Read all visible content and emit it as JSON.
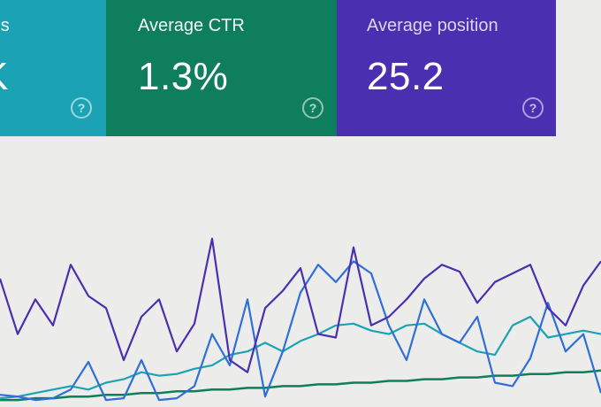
{
  "cards": {
    "impressions": {
      "title": "sions",
      "value": "K",
      "color": "#1ba3b5",
      "help_icon": "help-icon"
    },
    "ctr": {
      "title": "Average CTR",
      "value": "1.3%",
      "color": "#0e7e5c",
      "help_icon": "help-icon"
    },
    "position": {
      "title": "Average position",
      "value": "25.2",
      "color": "#4a2fb0",
      "help_icon": "help-icon"
    }
  },
  "chart_data": {
    "type": "line",
    "title": "",
    "xlabel": "",
    "ylabel": "",
    "grid": false,
    "x": [
      0,
      1,
      2,
      3,
      4,
      5,
      6,
      7,
      8,
      9,
      10,
      11,
      12,
      13,
      14,
      15,
      16,
      17,
      18,
      19,
      20,
      21,
      22,
      23,
      24,
      25,
      26,
      27,
      28,
      29,
      30,
      31,
      32,
      33,
      34
    ],
    "ylim": [
      0,
      100
    ],
    "series": [
      {
        "color": "#4a2fb0",
        "values": [
          72,
          40,
          60,
          45,
          80,
          62,
          55,
          25,
          50,
          60,
          30,
          46,
          95,
          25,
          18,
          55,
          65,
          78,
          40,
          38,
          90,
          45,
          50,
          60,
          72,
          80,
          76,
          58,
          70,
          75,
          80,
          55,
          45,
          68,
          82
        ]
      },
      {
        "color": "#2f6fd8",
        "values": [
          5,
          4,
          2,
          3,
          8,
          24,
          2,
          3,
          25,
          2,
          3,
          10,
          40,
          22,
          60,
          4,
          30,
          64,
          80,
          70,
          82,
          75,
          45,
          25,
          60,
          40,
          35,
          50,
          12,
          10,
          26,
          58,
          30,
          40,
          6
        ]
      },
      {
        "color": "#1ba3b5",
        "values": [
          3,
          4,
          6,
          8,
          10,
          8,
          12,
          14,
          18,
          16,
          17,
          20,
          22,
          28,
          30,
          35,
          30,
          36,
          40,
          45,
          46,
          42,
          40,
          45,
          46,
          40,
          35,
          30,
          28,
          45,
          50,
          38,
          40,
          42,
          40
        ]
      },
      {
        "color": "#0e7e5c",
        "values": [
          2,
          2,
          3,
          3,
          4,
          4,
          5,
          5,
          6,
          6,
          7,
          7,
          8,
          8,
          9,
          9,
          10,
          10,
          11,
          11,
          12,
          12,
          13,
          13,
          14,
          14,
          15,
          15,
          16,
          16,
          17,
          17,
          18,
          18,
          19
        ]
      }
    ]
  }
}
